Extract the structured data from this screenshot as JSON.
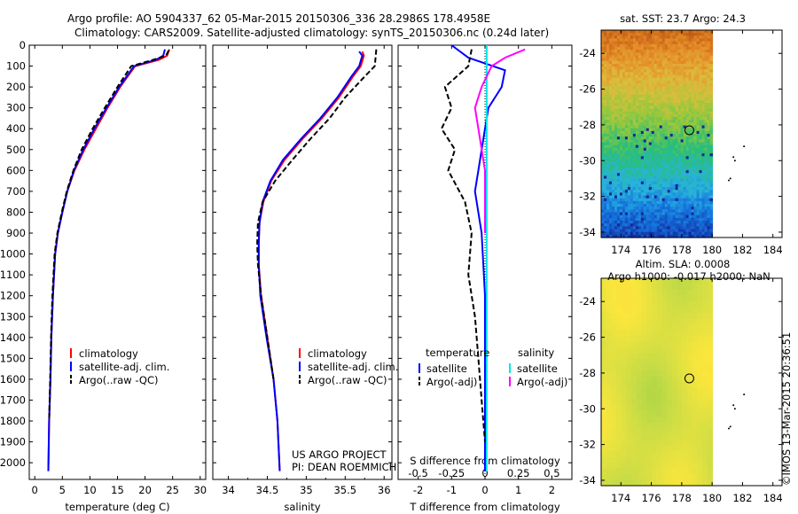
{
  "header": {
    "line1": "Argo profile: AO 5904337_62 05-Mar-2015 20150306_336 28.2986S 178.4958E",
    "line2": "Climatology: CARS2009. Satellite-adjusted climatology: synTS_20150306.nc (0.24d later)"
  },
  "credit": {
    "project": "US ARGO PROJECT",
    "pi": "PI: DEAN ROEMMICH",
    "stamp": "©IMOS 13-Mar-2015 20:36:51"
  },
  "colors": {
    "climatology": "#ff0000",
    "satellite": "#0000ff",
    "argo": "#000000",
    "sal_satellite": "#00e5ee",
    "sal_argo": "#ff00ff"
  },
  "chart_data": [
    {
      "type": "line",
      "panel": "temperature",
      "xlabel": "temperature (deg C)",
      "ylabel": "",
      "xlim": [
        -1,
        31
      ],
      "ylim": [
        2080,
        0
      ],
      "xticks": [
        "0",
        "5",
        "10",
        "15",
        "20",
        "25",
        "30"
      ],
      "yticks": [
        "0",
        "100",
        "200",
        "300",
        "400",
        "500",
        "600",
        "700",
        "800",
        "900",
        "1000",
        "1100",
        "1200",
        "1300",
        "1400",
        "1500",
        "1600",
        "1700",
        "1800",
        "1900",
        "2000"
      ],
      "legend": [
        "climatology",
        "satellite-adj. clim.",
        "Argo(..raw -QC)"
      ],
      "series": [
        {
          "name": "climatology",
          "color": "#ff0000",
          "dash": "",
          "x": [
            24.4,
            24.0,
            22.5,
            18.2,
            15.5,
            13.2,
            11.1,
            9.0,
            7.2,
            5.9,
            5.0,
            4.2,
            3.7,
            3.3,
            3.0,
            2.85,
            2.6,
            2.45
          ],
          "y": [
            20,
            50,
            70,
            100,
            200,
            300,
            400,
            500,
            600,
            700,
            800,
            900,
            1000,
            1200,
            1400,
            1600,
            1800,
            2040
          ]
        },
        {
          "name": "satellite-adj. clim.",
          "color": "#0000ff",
          "dash": "",
          "x": [
            23.6,
            23.3,
            22.0,
            18.0,
            15.3,
            13.0,
            10.8,
            8.8,
            7.1,
            5.9,
            5.0,
            4.2,
            3.7,
            3.3,
            3.0,
            2.85,
            2.6,
            2.45
          ],
          "y": [
            20,
            50,
            70,
            100,
            200,
            300,
            400,
            500,
            600,
            700,
            800,
            900,
            1000,
            1200,
            1400,
            1600,
            1800,
            2040
          ]
        },
        {
          "name": "Argo(..raw -QC)",
          "color": "#000000",
          "dash": "6,3",
          "x": [
            24.3,
            23.8,
            21.5,
            17.5,
            15.0,
            12.7,
            10.5,
            8.5,
            7.0,
            5.8,
            4.9,
            4.1,
            3.6,
            3.2,
            2.95,
            2.8,
            2.6
          ],
          "y": [
            25,
            50,
            70,
            100,
            200,
            300,
            400,
            500,
            600,
            700,
            800,
            900,
            1000,
            1200,
            1400,
            1600,
            1800
          ]
        }
      ]
    },
    {
      "type": "line",
      "panel": "salinity",
      "xlabel": "salinity",
      "ylabel": "",
      "xlim": [
        33.8,
        36.1
      ],
      "ylim": [
        2080,
        0
      ],
      "xticks": [
        "34",
        "34.5",
        "35",
        "35.5",
        "36"
      ],
      "legend": [
        "climatology",
        "satellite-adj. clim.",
        "Argo(..raw -QC)"
      ],
      "series": [
        {
          "name": "climatology",
          "color": "#ff0000",
          "dash": "",
          "x": [
            35.72,
            35.74,
            35.7,
            35.6,
            35.42,
            35.2,
            34.95,
            34.72,
            34.55,
            34.45,
            34.4,
            34.39,
            34.39,
            34.42,
            34.5,
            34.58,
            34.63,
            34.66
          ],
          "y": [
            30,
            50,
            100,
            150,
            250,
            350,
            450,
            550,
            650,
            750,
            850,
            950,
            1050,
            1200,
            1400,
            1600,
            1800,
            2040
          ]
        },
        {
          "name": "satellite-adj. clim.",
          "color": "#0000ff",
          "dash": "",
          "x": [
            35.68,
            35.72,
            35.68,
            35.58,
            35.4,
            35.18,
            34.93,
            34.7,
            34.54,
            34.44,
            34.4,
            34.39,
            34.39,
            34.41,
            34.49,
            34.58,
            34.63,
            34.66
          ],
          "y": [
            30,
            50,
            100,
            150,
            250,
            350,
            450,
            550,
            650,
            750,
            850,
            950,
            1050,
            1200,
            1400,
            1600,
            1800,
            2040
          ]
        },
        {
          "name": "Argo(..raw -QC)",
          "color": "#000000",
          "dash": "6,3",
          "x": [
            35.9,
            35.88,
            35.75,
            35.5,
            35.3,
            35.05,
            34.82,
            34.6,
            34.44,
            34.38,
            34.37,
            34.38,
            34.42,
            34.5,
            34.58
          ],
          "y": [
            20,
            100,
            150,
            250,
            350,
            450,
            550,
            650,
            750,
            850,
            950,
            1050,
            1200,
            1400,
            1600
          ]
        }
      ]
    },
    {
      "type": "line",
      "panel": "difference",
      "xlabel": "T difference from climatology",
      "xlabel_top": "S difference from climatology",
      "xlim": [
        -2.6,
        2.6
      ],
      "ylim": [
        2080,
        0
      ],
      "xticks": [
        "-2",
        "-1",
        "0",
        "1",
        "2"
      ],
      "xticks_top": [
        "-0.5",
        "-0.25",
        "0",
        "0.25",
        "0.5"
      ],
      "legend_headers": [
        "temperature",
        "salinity"
      ],
      "legend": [
        "satellite",
        "Argo(-adj)",
        "satellite",
        "Argo(-adj)"
      ],
      "series": [
        {
          "name": "satellite",
          "color": "#0000ff",
          "dash": "",
          "x": [
            -1.0,
            -0.5,
            0.6,
            0.5,
            0.1,
            0.0,
            -0.2,
            -0.3,
            -0.1,
            0.0,
            0.0,
            0.0,
            0.0
          ],
          "y": [
            0,
            60,
            120,
            200,
            300,
            400,
            600,
            700,
            900,
            1200,
            1500,
            1800,
            2040
          ]
        },
        {
          "name": "Argo(-adj)",
          "color": "#000000",
          "dash": "6,3",
          "x": [
            -0.4,
            -0.5,
            -1.2,
            -1.0,
            -1.3,
            -0.9,
            -1.1,
            -0.6,
            -0.4,
            -0.5,
            -0.3,
            -0.2,
            -0.1,
            0.0
          ],
          "y": [
            20,
            100,
            200,
            300,
            400,
            500,
            600,
            750,
            900,
            1100,
            1300,
            1500,
            1700,
            1900
          ]
        },
        {
          "name": "satellite",
          "color": "#00e5ee",
          "dash": "",
          "x": [
            0.05,
            0.05,
            0.05,
            0.05,
            0.05,
            0.05,
            0.05
          ],
          "y": [
            0,
            300,
            600,
            900,
            1200,
            1600,
            2040
          ]
        },
        {
          "name": "Argo(-adj)",
          "color": "#ff00ff",
          "dash": "",
          "x": [
            1.2,
            0.6,
            0.2,
            -0.1,
            -0.3,
            -0.2,
            0.0,
            0.0
          ],
          "y": [
            20,
            60,
            100,
            200,
            300,
            400,
            600,
            900
          ]
        }
      ]
    },
    {
      "type": "heatmap",
      "panel": "map-sst",
      "title": "sat. SST: 23.7 Argo: 24.3",
      "xticks": [
        "174",
        "176",
        "178",
        "180",
        "182",
        "184"
      ],
      "yticks": [
        "-24",
        "-26",
        "-28",
        "-30",
        "-32",
        "-34"
      ],
      "xlim": [
        172.7,
        184.6
      ],
      "ylim": [
        -34.3,
        -22.7
      ],
      "profile_marker": {
        "lon": 178.5,
        "lat": -28.3
      }
    },
    {
      "type": "heatmap",
      "panel": "map-sla",
      "title": "Altim. SLA: 0.0008",
      "subtitle": "Argo h1000: -0.017 h2000: NaN",
      "xticks": [
        "174",
        "176",
        "178",
        "180",
        "182",
        "184"
      ],
      "yticks": [
        "-24",
        "-26",
        "-28",
        "-30",
        "-32",
        "-34"
      ],
      "xlim": [
        172.7,
        184.6
      ],
      "ylim": [
        -34.3,
        -22.7
      ],
      "profile_marker": {
        "lon": 178.5,
        "lat": -28.3
      }
    }
  ]
}
